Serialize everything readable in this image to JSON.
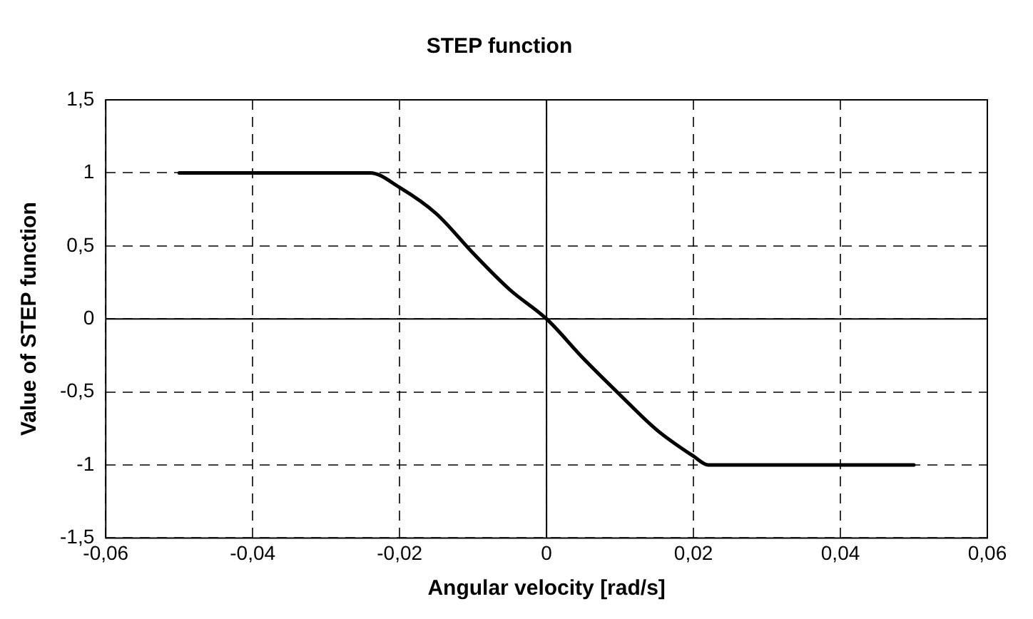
{
  "chart_data": {
    "type": "line",
    "title": "STEP function",
    "xlabel": "Angular velocity [rad/s]",
    "ylabel": "Value of STEP function",
    "x": [
      -0.05,
      -0.024,
      -0.02,
      -0.015,
      -0.01,
      -0.005,
      0,
      0.005,
      0.01,
      0.015,
      0.02,
      0.022,
      0.05
    ],
    "series": [
      {
        "color": "#000000",
        "values": [
          1,
          1,
          0.9,
          0.72,
          0.45,
          0.2,
          0,
          -0.27,
          -0.52,
          -0.76,
          -0.94,
          -1,
          -1
        ]
      }
    ],
    "xlim": [
      -0.06,
      0.06
    ],
    "ylim": [
      -1.5,
      1.5
    ],
    "xticks": [
      {
        "value": -0.06,
        "label": "-0,06"
      },
      {
        "value": -0.04,
        "label": "-0,04"
      },
      {
        "value": -0.02,
        "label": "-0,02"
      },
      0,
      {
        "value": 0.02,
        "label": "0,02"
      },
      {
        "value": 0.04,
        "label": "0,04"
      },
      {
        "value": 0.06,
        "label": "0,06"
      }
    ],
    "yticks": [
      {
        "value": -1.5,
        "label": "-1,5"
      },
      -1,
      {
        "value": -0.5,
        "label": "-0,5"
      },
      0,
      {
        "value": 0.5,
        "label": "0,5"
      },
      1,
      {
        "value": 1.5,
        "label": "1,5"
      }
    ],
    "grid": true,
    "legend": false,
    "marker": "none",
    "line_style": "solid"
  }
}
